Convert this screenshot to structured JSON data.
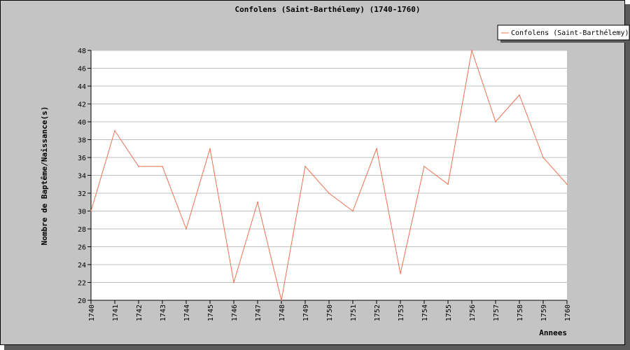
{
  "chart_data": {
    "type": "line",
    "title": "Confolens (Saint-Barthélemy) (1740-1760)",
    "xlabel": "Annees",
    "ylabel": "Nombre de Baptême/Naissance(s)",
    "categories": [
      "1740",
      "1741",
      "1742",
      "1743",
      "1744",
      "1745",
      "1746",
      "1747",
      "1748",
      "1749",
      "1750",
      "1751",
      "1752",
      "1753",
      "1754",
      "1755",
      "1756",
      "1757",
      "1758",
      "1759",
      "1760"
    ],
    "series": [
      {
        "name": "Confolens (Saint-Barthélemy)",
        "color": "#f07050",
        "values": [
          30,
          39,
          35,
          35,
          28,
          37,
          22,
          31,
          20,
          35,
          32,
          30,
          37,
          23,
          35,
          33,
          48,
          40,
          43,
          36,
          33
        ]
      }
    ],
    "ylim": [
      20,
      48
    ],
    "yticks": [
      20,
      22,
      24,
      26,
      28,
      30,
      32,
      34,
      36,
      38,
      40,
      42,
      44,
      46,
      48
    ],
    "grid": true,
    "legend_position": "top-right"
  }
}
